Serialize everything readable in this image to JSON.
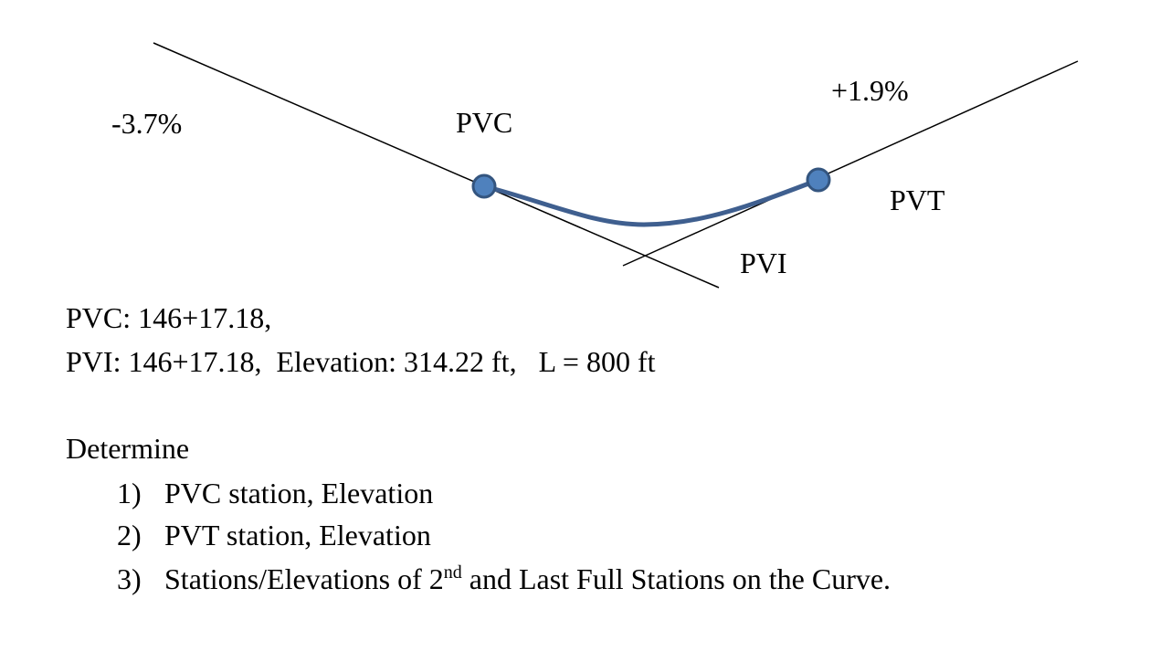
{
  "diagram": {
    "labels": {
      "grade_in": "-3.7%",
      "pvc": "PVC",
      "grade_out": "+1.9%",
      "pvt": "PVT",
      "pvi": "PVI"
    }
  },
  "given": [
    "PVC: 146+17.18,",
    "PVI: 146+17.18,  Elevation: 314.22 ft,   L = 800 ft"
  ],
  "task": {
    "heading": "Determine",
    "items": [
      {
        "number": "1)",
        "parts": [
          "PVC station, Elevation"
        ]
      },
      {
        "number": "2)",
        "parts": [
          "PVT station, Elevation"
        ]
      },
      {
        "number": "3)",
        "parts": [
          "Stations/Elevations of 2",
          "nd",
          " and Last Full Stations on the Curve."
        ]
      }
    ]
  }
}
